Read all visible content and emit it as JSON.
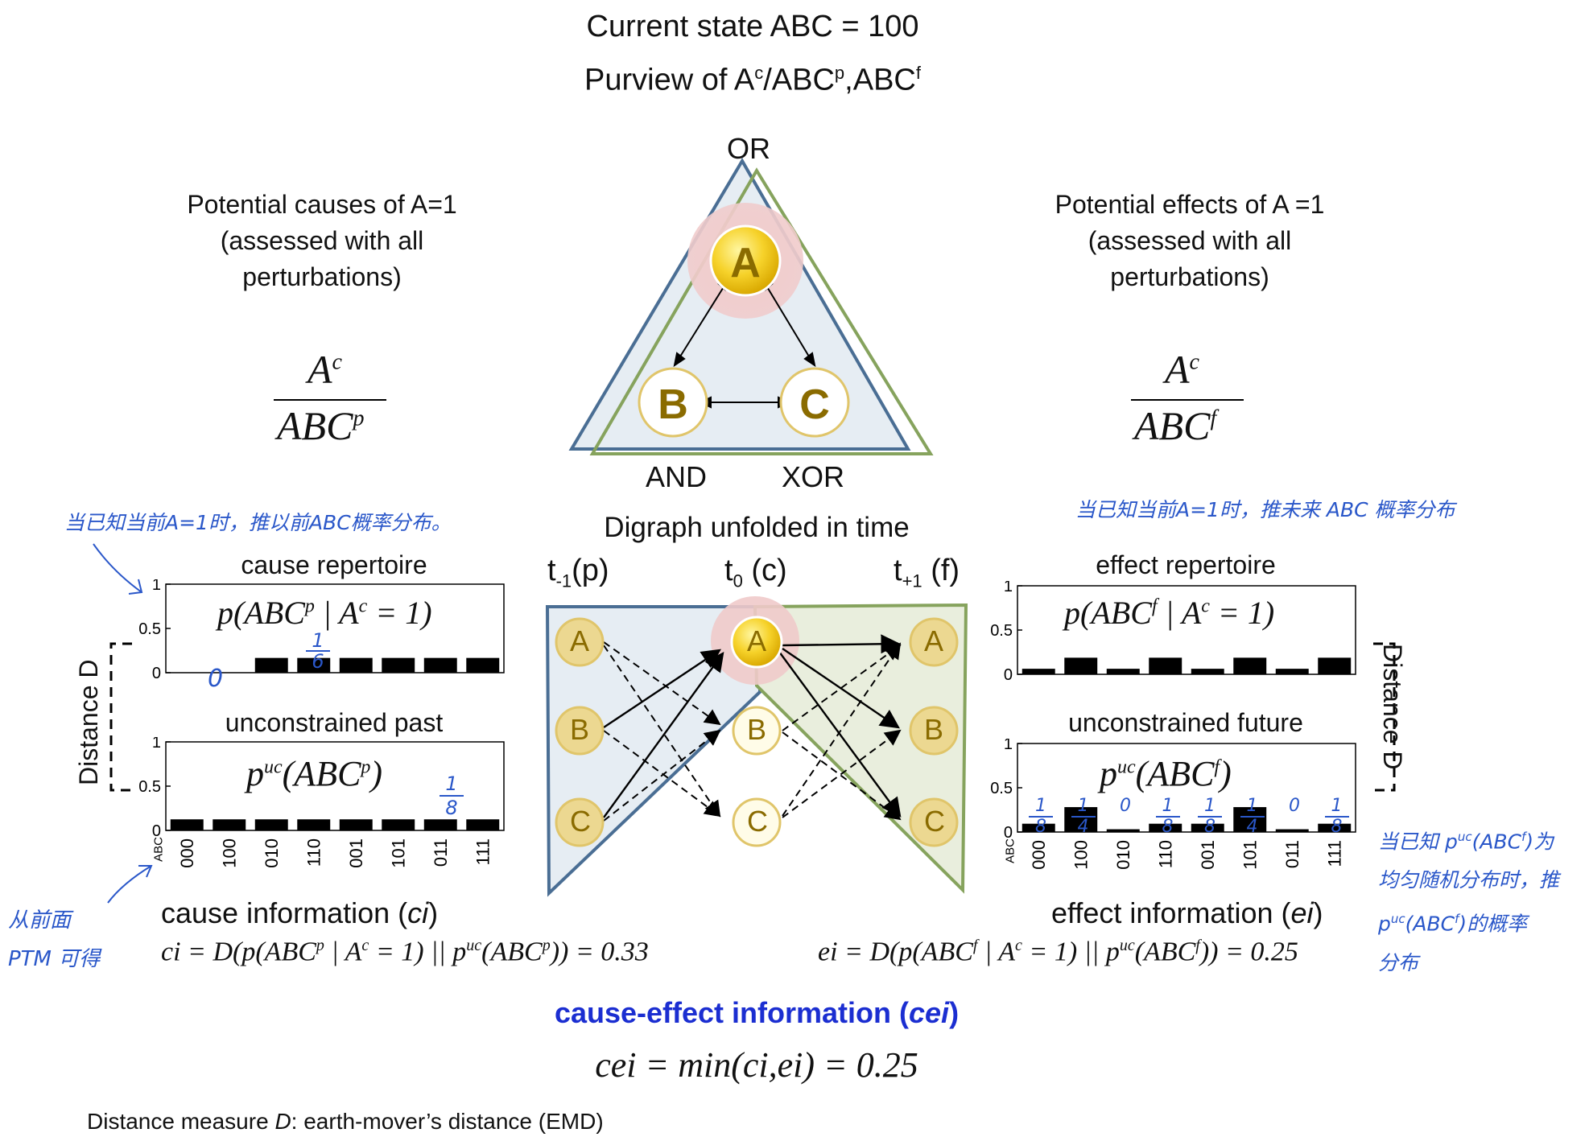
{
  "header": {
    "title": "Current state ABC = 100",
    "purview_prefix": "Purview of A",
    "purview_sup1": "c",
    "purview_mid": "/ABC",
    "purview_sup2": "p",
    "purview_mid2": ",ABC",
    "purview_sup3": "f"
  },
  "network": {
    "top_gate": "OR",
    "left_gate": "AND",
    "right_gate": "XOR",
    "node_a": "A",
    "node_b": "B",
    "node_c": "C"
  },
  "left_panel": {
    "heading_line1": "Potential causes of A=1",
    "heading_line2": "(assessed with all",
    "heading_line3": "perturbations)",
    "frac_num": "A",
    "frac_num_sup": "c",
    "frac_den": "ABC",
    "frac_den_sup": "p"
  },
  "right_panel": {
    "heading_line1": "Potential effects of A =1",
    "heading_line2": "(assessed with all",
    "heading_line3": "perturbations)",
    "frac_num": "A",
    "frac_num_sup": "c",
    "frac_den": "ABC",
    "frac_den_sup": "f"
  },
  "digraph": {
    "title": "Digraph unfolded in time",
    "t_past": "t",
    "t_past_sub": "-1",
    "t_past_suffix": "(p)",
    "t_now": "t",
    "t_now_sub": "0",
    "t_now_suffix": " (c)",
    "t_future": "t",
    "t_future_sub": "+1",
    "t_future_suffix": " (f)",
    "node_a": "A",
    "node_b": "B",
    "node_c": "C"
  },
  "cause_chart": {
    "title": "cause repertoire",
    "formula": "p(ABC",
    "formula_sup": "p",
    "formula_mid": " | A",
    "formula_sup2": "c",
    "formula_end": " = 1)"
  },
  "past_chart": {
    "title": "unconstrained past",
    "formula": "p",
    "formula_sup": "uc",
    "formula_end": "(ABC",
    "formula_sup2": "p",
    "formula_close": ")"
  },
  "effect_chart": {
    "title": "effect repertoire",
    "formula": "p(ABC",
    "formula_sup": "f",
    "formula_mid": " | A",
    "formula_sup2": "c",
    "formula_end": " = 1)"
  },
  "future_chart": {
    "title": "unconstrained future",
    "formula": "p",
    "formula_sup": "uc",
    "formula_end": "(ABC",
    "formula_sup2": "f",
    "formula_close": ")"
  },
  "distance_label_left": "Distance D",
  "distance_label_right": "Distance D",
  "chart_data": [
    {
      "type": "bar",
      "title": "cause repertoire",
      "categories": [
        "000",
        "100",
        "010",
        "110",
        "001",
        "101",
        "011",
        "111"
      ],
      "values": [
        0,
        0,
        0.1667,
        0.1667,
        0.1667,
        0.1667,
        0.1667,
        0.1667
      ],
      "yticks": [
        "0",
        "0.5",
        "1"
      ],
      "ylim": [
        0,
        1
      ]
    },
    {
      "type": "bar",
      "title": "unconstrained past",
      "categories": [
        "000",
        "100",
        "010",
        "110",
        "001",
        "101",
        "011",
        "111"
      ],
      "values": [
        0.125,
        0.125,
        0.125,
        0.125,
        0.125,
        0.125,
        0.125,
        0.125
      ],
      "xlabel": "ABC",
      "yticks": [
        "0",
        "0.5",
        "1"
      ],
      "ylim": [
        0,
        1
      ]
    },
    {
      "type": "bar",
      "title": "effect repertoire",
      "categories": [
        "000",
        "100",
        "010",
        "110",
        "001",
        "101",
        "011",
        "111"
      ],
      "values": [
        0.0625,
        0.1875,
        0.0625,
        0.1875,
        0.0625,
        0.1875,
        0.0625,
        0.1875
      ],
      "yticks": [
        "0",
        "0.5",
        "1"
      ],
      "ylim": [
        0,
        1
      ]
    },
    {
      "type": "bar",
      "title": "unconstrained future",
      "categories": [
        "000",
        "100",
        "010",
        "110",
        "001",
        "101",
        "011",
        "111"
      ],
      "values": [
        0.09375,
        0.28125,
        0.03125,
        0.09375,
        0.09375,
        0.28125,
        0.03125,
        0.09375
      ],
      "xlabel": "ABC",
      "yticks": [
        "0",
        "0.5",
        "1"
      ],
      "ylim": [
        0,
        1
      ]
    }
  ],
  "info": {
    "ci_label": "cause information (",
    "ci_italic": "ci",
    "ci_close": ")",
    "ci_formula": "ci = D(p(ABC",
    "ci_sup1": "p",
    "ci_mid": " | A",
    "ci_sup2": "c",
    "ci_mid2": " = 1) || p",
    "ci_sup3": "uc",
    "ci_mid3": "(ABC",
    "ci_sup4": "p",
    "ci_end": ")) = 0.33",
    "ei_label": "effect information (",
    "ei_italic": "ei",
    "ei_close": ")",
    "ei_formula": "ei = D(p(ABC",
    "ei_sup1": "f",
    "ei_mid": " | A",
    "ei_sup2": "c",
    "ei_mid2": " = 1) || p",
    "ei_sup3": "uc",
    "ei_mid3": "(ABC",
    "ei_sup4": "f",
    "ei_end": ")) = 0.25",
    "cei_label": "cause-effect information (",
    "cei_italic": "cei",
    "cei_close": ")",
    "cei_formula": "cei = min(ci,ei) = 0.25",
    "footnote_pre": "Distance measure ",
    "footnote_D": "D",
    "footnote_post": ": earth-mover’s distance (EMD)"
  },
  "handwritten": {
    "note_left_top": "当已知当前A=1时，推以前ABC概率分布。",
    "note_right_top": "当已知当前A=1时，推未来 ABC 概率分布",
    "note_left_bottom_1": "从前面",
    "note_left_bottom_2": "PTM 可得",
    "note_right_1": "当已知 p",
    "note_right_1_sup": "uc",
    "note_right_1_end": "(ABC",
    "note_right_1_sup2": "f",
    "note_right_1_end2": ")为",
    "note_right_2": "均匀随机分布时，推",
    "note_right_3": "p",
    "note_right_3_sup": "uc",
    "note_right_3_end": "(ABC",
    "note_right_3_sup2": "f",
    "note_right_3_end2": ")的概率",
    "note_right_4": "分布",
    "mark_zero": "0",
    "mark_one_sixth_num": "1",
    "mark_one_sixth_den": "6",
    "mark_one_eighth_num": "1",
    "mark_one_eighth_den": "8",
    "future_marks": [
      {
        "num": "1",
        "den": "8"
      },
      {
        "num": "1",
        "den": "4"
      },
      {
        "num": "",
        "den": "0"
      },
      {
        "num": "1",
        "den": "8"
      },
      {
        "num": "1",
        "den": "8"
      },
      {
        "num": "1",
        "den": "4"
      },
      {
        "num": "",
        "den": "0"
      },
      {
        "num": "1",
        "den": "8"
      }
    ]
  },
  "colors": {
    "blue_triangle": "#4a6e94",
    "green_triangle": "#86a35d",
    "node_fill": "#f2cf23",
    "node_text": "#8a6b00",
    "pink_highlight": "#eec5c5",
    "cei_blue": "#1b2ed1",
    "hand_blue": "#2a57c9"
  }
}
